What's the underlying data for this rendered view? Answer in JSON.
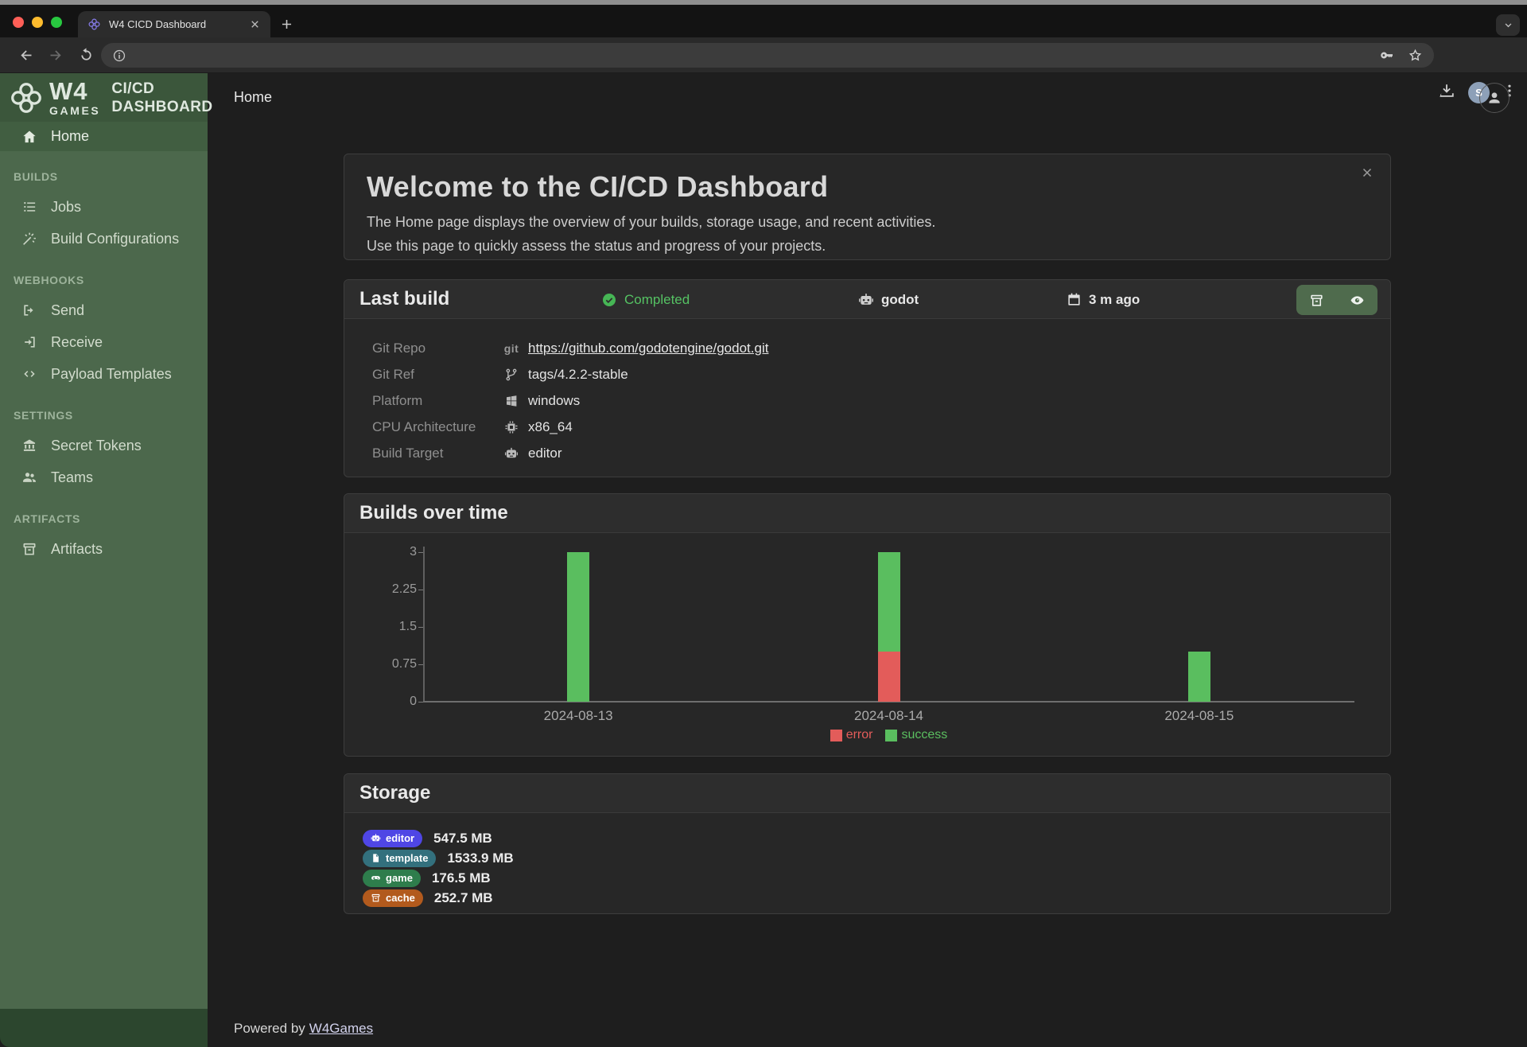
{
  "browser": {
    "tab_title": "W4 CICD Dashboard",
    "address_bar_text": "",
    "avatar_initial": "S",
    "traffic_lights": [
      "#ff5f57",
      "#febc2e",
      "#28c840"
    ]
  },
  "sidebar": {
    "logo": {
      "brand_top": "W4",
      "brand_bottom": "GAMES",
      "product_line1": "CI/CD",
      "product_line2": "DASHBOARD"
    },
    "home": {
      "label": "Home",
      "icon": "home-icon",
      "active": true
    },
    "sections": [
      {
        "label": "BUILDS",
        "items": [
          {
            "label": "Jobs",
            "icon": "list-icon"
          },
          {
            "label": "Build Configurations",
            "icon": "wand-icon"
          }
        ]
      },
      {
        "label": "WEBHOOKS",
        "items": [
          {
            "label": "Send",
            "icon": "send-icon"
          },
          {
            "label": "Receive",
            "icon": "receive-icon"
          },
          {
            "label": "Payload Templates",
            "icon": "code-icon"
          }
        ]
      },
      {
        "label": "SETTINGS",
        "items": [
          {
            "label": "Secret Tokens",
            "icon": "bank-icon"
          },
          {
            "label": "Teams",
            "icon": "teams-icon"
          }
        ]
      },
      {
        "label": "ARTIFACTS",
        "items": [
          {
            "label": "Artifacts",
            "icon": "archive-icon"
          }
        ]
      }
    ]
  },
  "header": {
    "breadcrumb": "Home"
  },
  "welcome": {
    "title": "Welcome to the CI/CD Dashboard",
    "line1": "The Home page displays the overview of your builds, storage usage, and recent activities.",
    "line2": "Use this page to quickly assess the status and progress of your projects."
  },
  "last_build": {
    "title": "Last build",
    "status": "Completed",
    "status_color": "#55c263",
    "project": "godot",
    "time": "3 m ago",
    "actions": [
      "archive-icon",
      "eye-icon"
    ],
    "details": [
      {
        "label": "Git Repo",
        "icon": "git-icon",
        "value": "https://github.com/godotengine/godot.git",
        "link": true
      },
      {
        "label": "Git Ref",
        "icon": "branch-icon",
        "value": "tags/4.2.2-stable",
        "link": false
      },
      {
        "label": "Platform",
        "icon": "windows-icon",
        "value": "windows",
        "link": false
      },
      {
        "label": "CPU Architecture",
        "icon": "cpu-icon",
        "value": "x86_64",
        "link": false
      },
      {
        "label": "Build Target",
        "icon": "robot-icon",
        "value": "editor",
        "link": false
      }
    ]
  },
  "chart_data": {
    "type": "bar",
    "stacked": true,
    "title": "Builds over time",
    "categories": [
      "2024-08-13",
      "2024-08-14",
      "2024-08-15"
    ],
    "series": [
      {
        "name": "error",
        "color": "#e35c5a",
        "values": [
          0,
          1,
          0
        ]
      },
      {
        "name": "success",
        "color": "#5abe5f",
        "values": [
          3,
          2,
          1
        ]
      }
    ],
    "xlabel": "",
    "ylabel": "",
    "ylim": [
      0,
      3
    ],
    "yticks": [
      0,
      0.75,
      1.5,
      2.25,
      3
    ],
    "grid": false,
    "legend_position": "bottom"
  },
  "storage": {
    "title": "Storage",
    "items": [
      {
        "label": "editor",
        "icon": "robot-icon",
        "color": "#4f46e5",
        "value": "547.5 MB"
      },
      {
        "label": "template",
        "icon": "file-icon",
        "color": "#33707d",
        "value": "1533.9 MB"
      },
      {
        "label": "game",
        "icon": "gamepad-icon",
        "color": "#2e7d4c",
        "value": "176.5 MB"
      },
      {
        "label": "cache",
        "icon": "archive-icon",
        "color": "#b25a1d",
        "value": "252.7 MB"
      }
    ]
  },
  "footer": {
    "powered_by": "Powered by",
    "link_label": "W4Games"
  }
}
